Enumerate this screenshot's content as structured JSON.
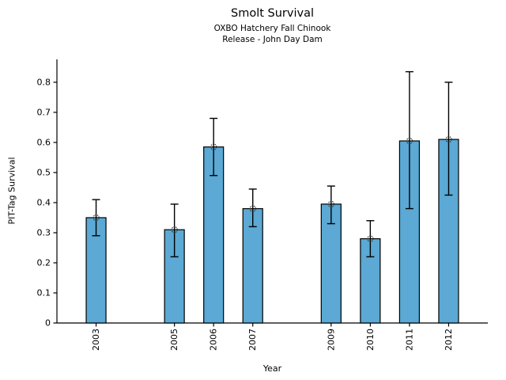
{
  "chart_data": {
    "type": "bar",
    "title": "Smolt Survival",
    "subtitle1": "OXBO Hatchery Fall Chinook",
    "subtitle2": "Release - John Day Dam",
    "xlabel": "Year",
    "ylabel": "PIT-Tag Survival",
    "categories": [
      "2003",
      "2005",
      "2006",
      "2007",
      "2009",
      "2010",
      "2011",
      "2012"
    ],
    "values": [
      0.35,
      0.31,
      0.585,
      0.38,
      0.395,
      0.28,
      0.605,
      0.61
    ],
    "error_low": [
      0.29,
      0.22,
      0.49,
      0.32,
      0.33,
      0.22,
      0.38,
      0.425
    ],
    "error_high": [
      0.41,
      0.395,
      0.68,
      0.445,
      0.455,
      0.34,
      0.835,
      0.8
    ],
    "yticks": [
      0,
      0.1,
      0.2,
      0.3,
      0.4,
      0.5,
      0.6,
      0.7,
      0.8
    ],
    "ytick_labels": [
      "0",
      "0.1",
      "0.2",
      "0.3",
      "0.4",
      "0.5",
      "0.6",
      "0.7",
      "0.8"
    ],
    "ylim": [
      0,
      0.876
    ],
    "xlim": [
      2002,
      2013
    ],
    "grid": false,
    "legend": null,
    "bar_color": "#5BA9D4",
    "bar_edge_color": "#000000",
    "error_color": "#000000",
    "marker": "open-circle",
    "marker_edge_color": "#2a2a2a"
  }
}
